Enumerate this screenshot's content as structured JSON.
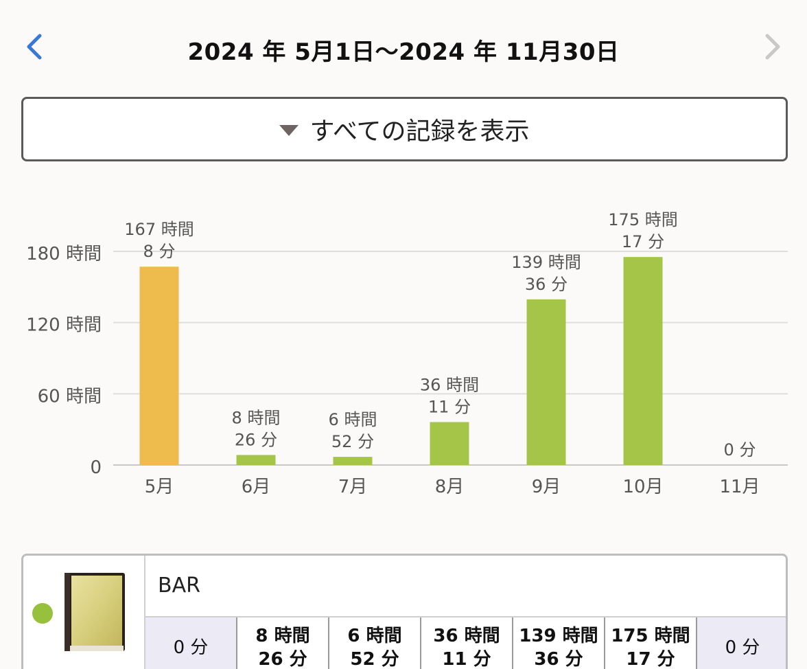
{
  "header": {
    "title": "2024 年 5月1日～2024 年 11月30日"
  },
  "filter": {
    "label": "すべての記録を表示"
  },
  "chart_data": {
    "type": "bar",
    "categories": [
      "5月",
      "6月",
      "7月",
      "8月",
      "9月",
      "10月",
      "11月"
    ],
    "values": [
      167.13,
      8.43,
      6.87,
      36.18,
      139.6,
      175.28,
      0
    ],
    "value_labels": [
      [
        "167 時間",
        "8 分"
      ],
      [
        "8 時間",
        "26 分"
      ],
      [
        "6 時間",
        "52 分"
      ],
      [
        "36 時間",
        "11 分"
      ],
      [
        "139 時間",
        "36 分"
      ],
      [
        "175 時間",
        "17 分"
      ],
      [
        "0 分"
      ]
    ],
    "bar_colors": [
      "#eebc4c",
      "#a4c548",
      "#a4c548",
      "#a4c548",
      "#a4c548",
      "#a4c548",
      "#a4c548"
    ],
    "yticks": [
      0,
      60,
      120,
      180
    ],
    "ytick_labels": [
      "0",
      "60 時間",
      "120 時間",
      "180 時間"
    ],
    "ylim": [
      0,
      180
    ],
    "grid": true
  },
  "card": {
    "name": "BAR",
    "dot_color": "#97c03c",
    "cells": [
      [
        "0 分"
      ],
      [
        "8 時間",
        "26 分"
      ],
      [
        "6 時間",
        "52 分"
      ],
      [
        "36 時間",
        "11 分"
      ],
      [
        "139 時間",
        "36 分"
      ],
      [
        "175 時間",
        "17 分"
      ],
      [
        "0 分"
      ]
    ]
  }
}
